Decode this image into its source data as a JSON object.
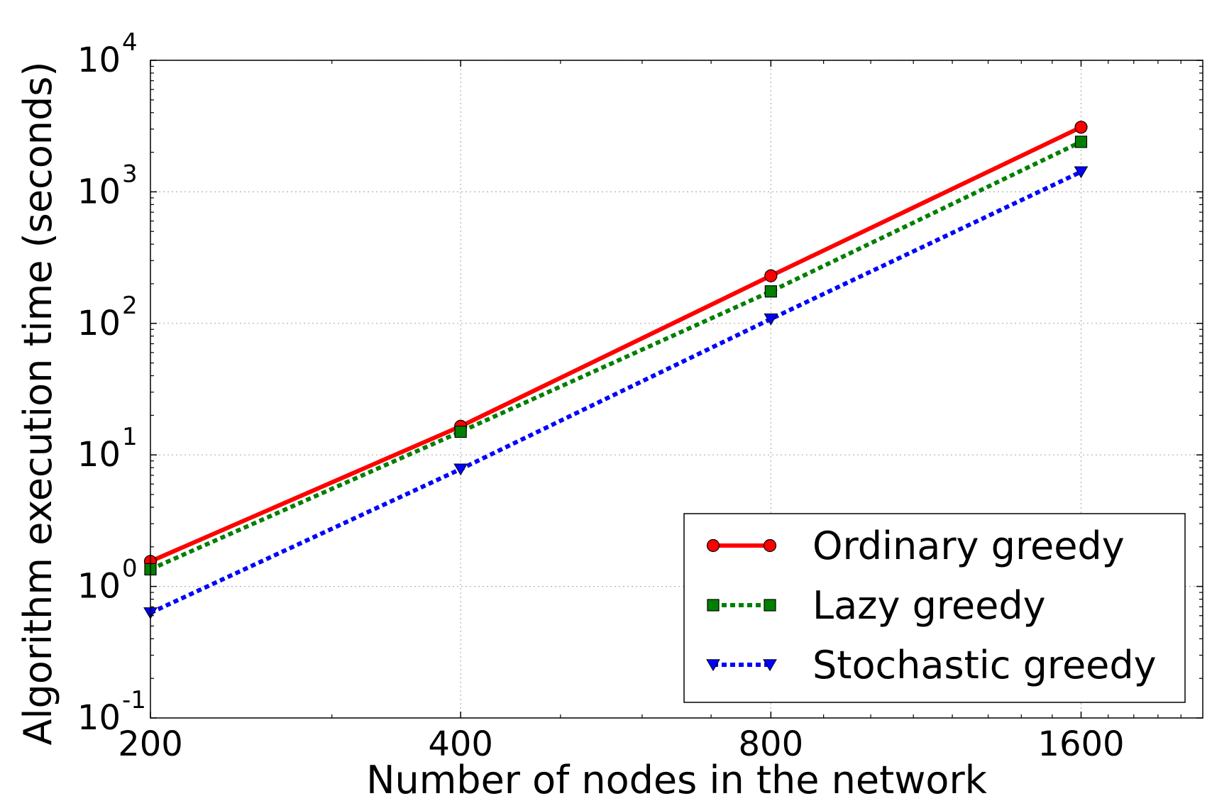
{
  "chart_data": {
    "type": "line",
    "x": [
      200,
      400,
      800,
      1600
    ],
    "x_tick_labels": [
      "200",
      "400",
      "800",
      "1600"
    ],
    "xlabel": "Number of nodes in the network",
    "ylabel": "Algorithm execution time (seconds)",
    "xscale": "log2",
    "yscale": "log10",
    "xlim": [
      200,
      2100
    ],
    "ylim": [
      0.1,
      10000
    ],
    "y_ticks": [
      {
        "base": "10",
        "exp": "-1",
        "value": 0.1
      },
      {
        "base": "10",
        "exp": "0",
        "value": 1
      },
      {
        "base": "10",
        "exp": "1",
        "value": 10
      },
      {
        "base": "10",
        "exp": "2",
        "value": 100
      },
      {
        "base": "10",
        "exp": "3",
        "value": 1000
      },
      {
        "base": "10",
        "exp": "4",
        "value": 10000
      }
    ],
    "grid": true,
    "legend_position": "lower-right",
    "series": [
      {
        "name": "Ordinary greedy",
        "values": [
          1.55,
          16.5,
          230,
          3100
        ],
        "color": "#ff0000",
        "marker": "circle",
        "dash": "solid"
      },
      {
        "name": "Lazy greedy",
        "values": [
          1.35,
          15,
          175,
          2400
        ],
        "color": "#008000",
        "marker": "square",
        "dash": "dotted"
      },
      {
        "name": "Stochastic greedy",
        "values": [
          0.63,
          7.8,
          108,
          1420
        ],
        "color": "#0000ff",
        "marker": "triangle-down",
        "dash": "dotted"
      }
    ]
  }
}
